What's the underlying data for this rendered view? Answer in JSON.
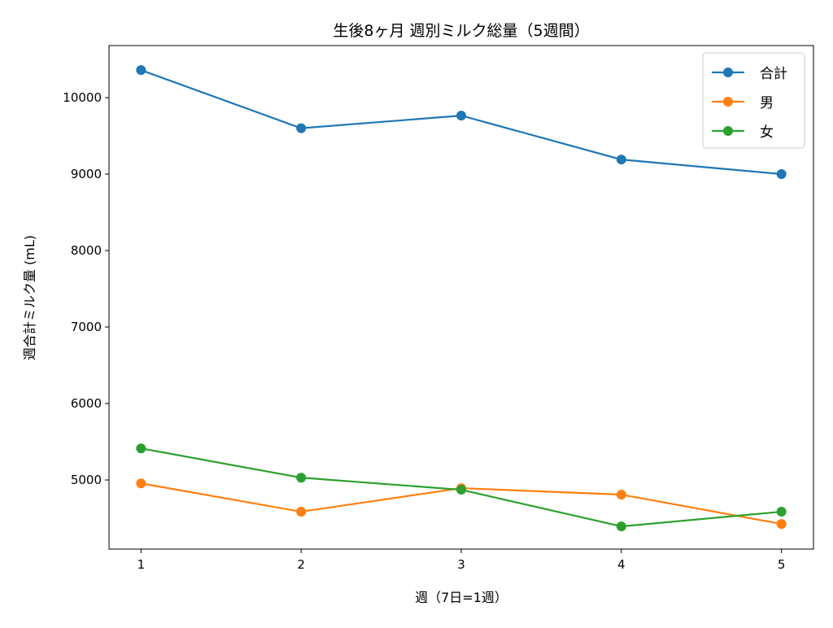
{
  "chart_data": {
    "type": "line",
    "title": "生後8ヶ月 週別ミルク総量（5週間）",
    "xlabel": "週（7日=1週）",
    "ylabel": "週合計ミルク量 (mL)",
    "x": [
      1,
      2,
      3,
      4,
      5
    ],
    "x_ticks": [
      "1",
      "2",
      "3",
      "4",
      "5"
    ],
    "y_ticks": [
      5000,
      6000,
      7000,
      8000,
      9000,
      10000
    ],
    "xlim": [
      0.8,
      5.2
    ],
    "ylim": [
      4096,
      10681
    ],
    "grid": false,
    "legend_position": "top-right",
    "series": [
      {
        "name": "合計",
        "color": "#1f77b4",
        "values": [
          10360,
          9600,
          9765,
          9190,
          9000
        ]
      },
      {
        "name": "男",
        "color": "#ff7f0e",
        "values": [
          4955,
          4585,
          4893,
          4808,
          4425
        ]
      },
      {
        "name": "女",
        "color": "#2ca02c",
        "values": [
          5413,
          5030,
          4872,
          4393,
          4585
        ]
      }
    ]
  }
}
